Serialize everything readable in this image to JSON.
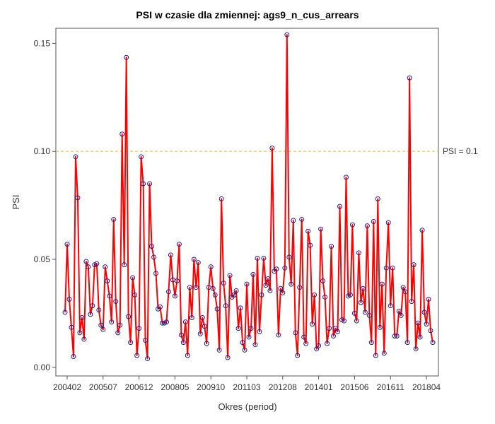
{
  "chart_data": {
    "type": "line",
    "title": "PSI w czasie dla zmiennej: ags9_n_cus_arrears",
    "xlabel": "Okres (period)",
    "ylabel": "PSI",
    "ylim": [
      -0.004,
      0.157
    ],
    "yticks": [
      "0.00",
      "0.05",
      "0.10",
      "0.15"
    ],
    "ytick_values": [
      0,
      0.05,
      0.1,
      0.15
    ],
    "xticks": [
      "200402",
      "200507",
      "200612",
      "200805",
      "200910",
      "201103",
      "201208",
      "201401",
      "201506",
      "201611",
      "201804"
    ],
    "start_period": "200401",
    "end_period": "201807",
    "reference_line": {
      "value": 0.1,
      "label": "PSI = 0.1",
      "color": "#f5c342"
    },
    "line_color": "#ff0000",
    "marker_color": "#1f1f8f",
    "values": [
      0.0255,
      0.057,
      0.0315,
      0.0185,
      0.005,
      0.0975,
      0.0785,
      0.016,
      0.023,
      0.013,
      0.049,
      0.0465,
      0.0245,
      0.0285,
      0.0475,
      0.048,
      0.0265,
      0.0195,
      0.0175,
      0.0465,
      0.04,
      0.033,
      0.021,
      0.0685,
      0.0305,
      0.016,
      0.0195,
      0.108,
      0.0475,
      0.1435,
      0.0235,
      0.0115,
      0.0415,
      0.0335,
      0.0055,
      0.018,
      0.0975,
      0.085,
      0.0125,
      0.004,
      0.085,
      0.056,
      0.051,
      0.0435,
      0.027,
      0.028,
      0.0205,
      0.0205,
      0.021,
      0.035,
      0.052,
      0.0405,
      0.033,
      0.04,
      0.057,
      0.015,
      0.0115,
      0.021,
      0.0055,
      0.037,
      0.023,
      0.05,
      0.037,
      0.0485,
      0.0155,
      0.023,
      0.019,
      0.011,
      0.037,
      0.0465,
      0.0365,
      0.0335,
      0.027,
      0.008,
      0.078,
      0.039,
      0.0285,
      0.0045,
      0.0425,
      0.0325,
      0.0335,
      0.0355,
      0.018,
      0.0275,
      0.0115,
      0.008,
      0.0385,
      0.014,
      0.018,
      0.043,
      0.0105,
      0.0505,
      0.0165,
      0.0335,
      0.0505,
      0.038,
      0.041,
      0.0355,
      0.1015,
      0.0445,
      0.0455,
      0.015,
      0.0365,
      0.0345,
      0.046,
      0.154,
      0.051,
      0.0385,
      0.068,
      0.016,
      0.0055,
      0.037,
      0.0685,
      0.014,
      0.011,
      0.063,
      0.0565,
      0.02,
      0.0335,
      0.0085,
      0.01,
      0.064,
      0.04,
      0.0325,
      0.011,
      0.018,
      0.056,
      0.0145,
      0.018,
      0.0165,
      0.0745,
      0.022,
      0.0215,
      0.088,
      0.033,
      0.0335,
      0.066,
      0.025,
      0.0215,
      0.053,
      0.03,
      0.0365,
      0.0255,
      0.0655,
      0.024,
      0.0115,
      0.0675,
      0.0055,
      0.078,
      0.0185,
      0.0385,
      0.0065,
      0.046,
      0.067,
      0.0285,
      0.046,
      0.0145,
      0.0145,
      0.026,
      0.024,
      0.037,
      0.035,
      0.0115,
      0.134,
      0.0305,
      0.0475,
      0.0085,
      0.0205,
      0.014,
      0.0635,
      0.0255,
      0.02,
      0.0315,
      0.017,
      0.0115
    ]
  }
}
